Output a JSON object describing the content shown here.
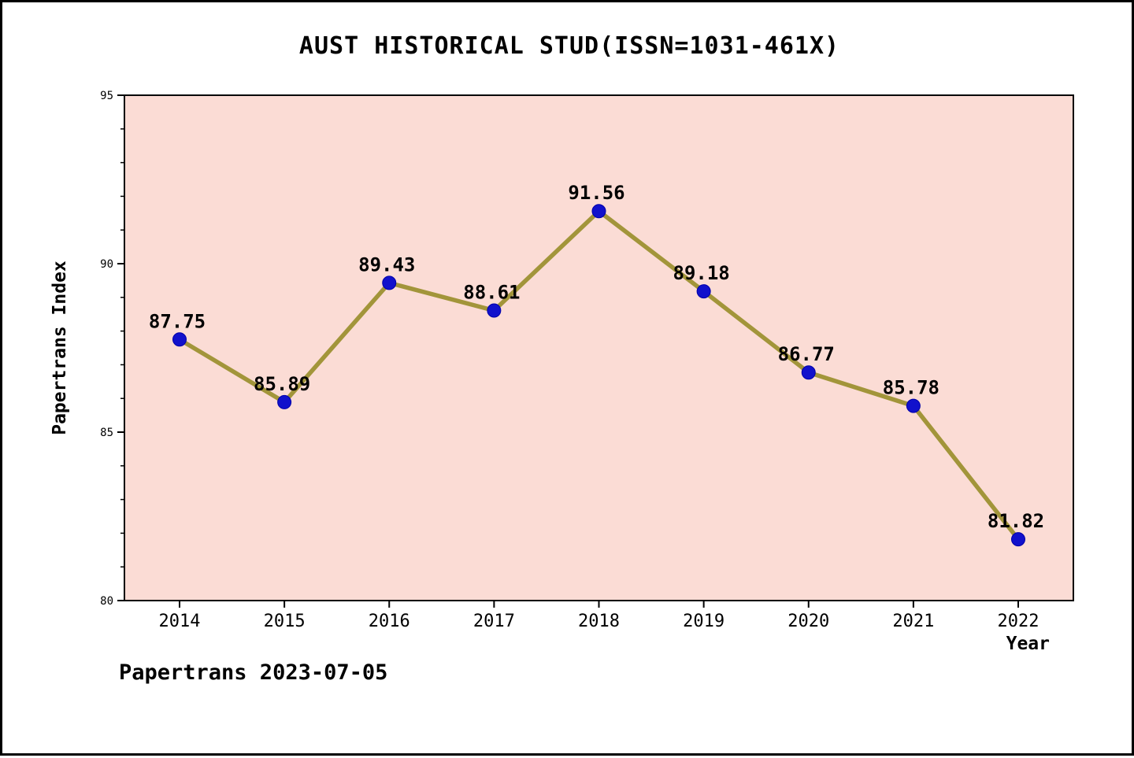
{
  "title": "AUST HISTORICAL STUD(ISSN=1031-461X)",
  "footer": "Papertrans 2023-07-05",
  "chart_data": {
    "type": "line",
    "title": "AUST HISTORICAL STUD(ISSN=1031-461X)",
    "xlabel": "Year",
    "ylabel": "Papertrans Index",
    "categories": [
      "2014",
      "2015",
      "2016",
      "2017",
      "2018",
      "2019",
      "2020",
      "2021",
      "2022"
    ],
    "values": [
      87.75,
      85.89,
      89.43,
      88.61,
      91.56,
      89.18,
      86.77,
      85.78,
      81.82
    ],
    "point_labels": [
      "87.75",
      "85.89",
      "89.43",
      "88.61",
      "91.56",
      "89.18",
      "86.77",
      "85.78",
      "81.82"
    ],
    "ylim": [
      80,
      95
    ],
    "y_major_ticks": [
      80,
      85,
      90,
      95
    ],
    "y_minor_step": 1,
    "grid": "off",
    "legend": "none",
    "colors": {
      "plot_background": "#fbdcd5",
      "line": "#a2953a",
      "marker": "#1111cc",
      "axis": "#000000",
      "text": "#000000"
    }
  }
}
